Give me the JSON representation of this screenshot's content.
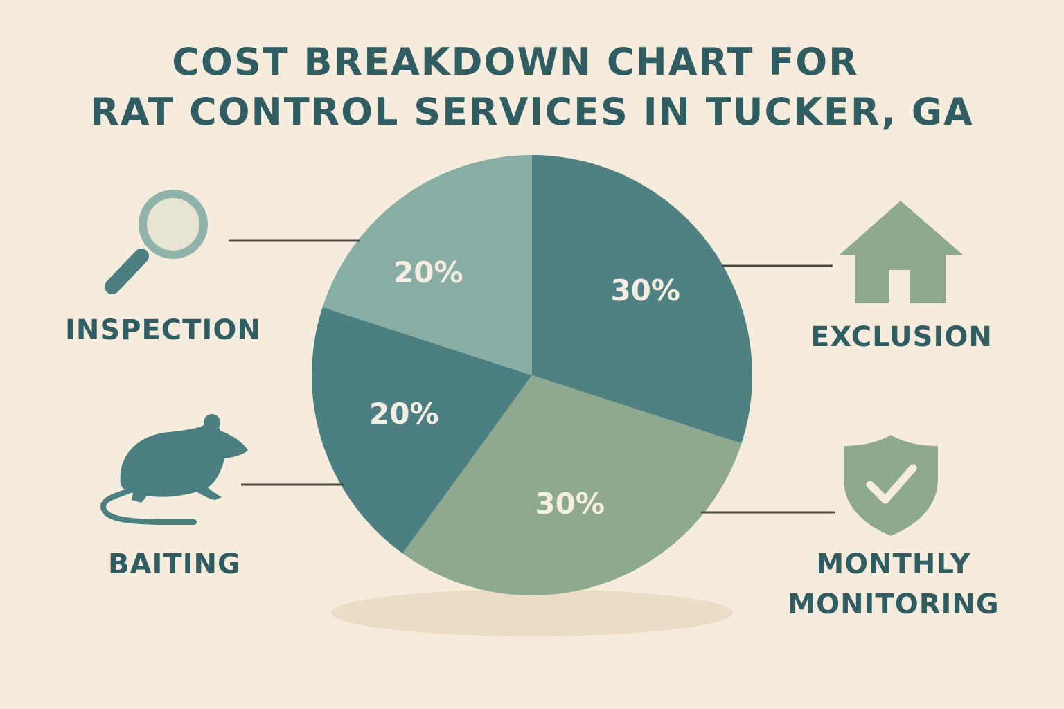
{
  "title": {
    "line1": "COST BREAKDOWN CHART FOR",
    "line2": "RAT CONTROL SERVICES IN TUCKER, GA"
  },
  "chart_data": {
    "type": "pie",
    "slices": [
      {
        "label": "EXCLUSION",
        "value": 30,
        "data_label": "30%",
        "color": "#4f8183",
        "icon": "house-icon"
      },
      {
        "label": "MONTHLY MONITORING",
        "value": 30,
        "data_label": "30%",
        "color": "#8ea98f",
        "icon": "shield-check-icon"
      },
      {
        "label": "BAITING",
        "value": 20,
        "data_label": "20%",
        "color": "#4b7f82",
        "icon": "rat-icon"
      },
      {
        "label": "INSPECTION",
        "value": 20,
        "data_label": "20%",
        "color": "#87ada5",
        "icon": "magnifying-glass-icon"
      }
    ]
  },
  "labels": {
    "inspection": "INSPECTION",
    "baiting": "BAITING",
    "exclusion": "EXCLUSION",
    "monitoring_line1": "MONTHLY",
    "monitoring_line2": "MONITORING"
  },
  "colors": {
    "background": "#f6ecdd",
    "text": "#2f5d61",
    "leader_line": "#4a4a44",
    "icon_primary": "#4b7f82",
    "icon_secondary": "#8ea98f",
    "slice_text": "#f4eee2"
  }
}
